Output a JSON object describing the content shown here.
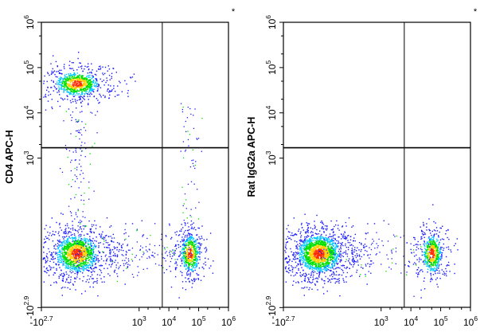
{
  "chart_data": [
    {
      "type": "scatter",
      "title": "",
      "corner_mark": "*",
      "xlabel": "",
      "ylabel": "CD4 APC-H",
      "xscale": "log",
      "yscale": "log",
      "xlim": [
        -500,
        1000000
      ],
      "ylim": [
        -700,
        1000000
      ],
      "x_ticks": [
        {
          "base": "-10",
          "exp": "2.7"
        },
        {
          "base": "10",
          "exp": "3"
        },
        {
          "base": "10",
          "exp": "4"
        },
        {
          "base": "10",
          "exp": "5"
        },
        {
          "base": "10",
          "exp": "6"
        }
      ],
      "y_ticks": [
        {
          "base": "-10",
          "exp": "2.9"
        },
        {
          "base": "10",
          "exp": "3"
        },
        {
          "base": "10",
          "exp": "4"
        },
        {
          "base": "10",
          "exp": "5"
        },
        {
          "base": "10",
          "exp": "6"
        }
      ],
      "gates": {
        "x": 6000,
        "y": 1700
      },
      "populations": [
        {
          "name": "",
          "x": 300,
          "y": 45000,
          "count": 900
        },
        {
          "name": "",
          "x": 300,
          "y": 300,
          "count": 1500
        },
        {
          "name": "",
          "x": 50000,
          "y": 300,
          "count": 600
        }
      ]
    },
    {
      "type": "scatter",
      "title": "",
      "corner_mark": "*",
      "xlabel": "",
      "ylabel": "Rat IgG2a APC-H",
      "xscale": "log",
      "yscale": "log",
      "xlim": [
        -500,
        1000000
      ],
      "ylim": [
        -700,
        1000000
      ],
      "x_ticks": [
        {
          "base": "-10",
          "exp": "2.7"
        },
        {
          "base": "10",
          "exp": "3"
        },
        {
          "base": "10",
          "exp": "4"
        },
        {
          "base": "10",
          "exp": "5"
        },
        {
          "base": "10",
          "exp": "6"
        }
      ],
      "y_ticks": [
        {
          "base": "-10",
          "exp": "2.9"
        },
        {
          "base": "10",
          "exp": "3"
        },
        {
          "base": "10",
          "exp": "4"
        },
        {
          "base": "10",
          "exp": "5"
        },
        {
          "base": "10",
          "exp": "6"
        }
      ],
      "gates": {
        "x": 6000,
        "y": 1700
      },
      "populations": [
        {
          "name": "",
          "x": 300,
          "y": 300,
          "count": 1900
        },
        {
          "name": "",
          "x": 50000,
          "y": 300,
          "count": 600
        }
      ]
    }
  ],
  "colors": {
    "density_low": "#1a1aff",
    "density_mid": "#00e000",
    "density_high": "#ff2a00",
    "axis": "#000000",
    "gate_line": "#000000"
  }
}
